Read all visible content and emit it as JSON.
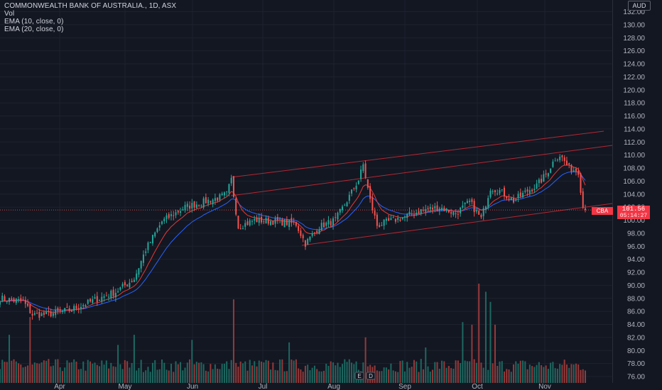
{
  "legend": {
    "title": "COMMONWEALTH BANK OF AUSTRALIA., 1D, ASX",
    "vol": "Vol",
    "ema10": "EMA (10, close, 0)",
    "ema20": "EMA (20, close, 0)"
  },
  "currency": "AUD",
  "last_price": {
    "symbol": "CBA",
    "price": "101.56",
    "countdown": "05:14:27"
  },
  "colors": {
    "background": "#131722",
    "up": "#26a69a",
    "down": "#ef5350",
    "ema10": "#e53935",
    "ema20": "#2962ff",
    "channel": "#b22833",
    "grid": "#1e222d",
    "axis_text": "#b2b5be"
  },
  "event_markers": [
    "E",
    "D"
  ],
  "chart_data": {
    "type": "candlestick",
    "title": "COMMONWEALTH BANK OF AUSTRALIA., 1D, ASX",
    "ylim": [
      76,
      132
    ],
    "y_ticks": [
      "132.00",
      "130.00",
      "128.00",
      "126.00",
      "124.00",
      "122.00",
      "120.00",
      "118.00",
      "116.00",
      "114.00",
      "112.00",
      "110.00",
      "108.00",
      "106.00",
      "104.00",
      "102.00",
      "100.00",
      "98.00",
      "96.00",
      "94.00",
      "92.00",
      "90.00",
      "88.00",
      "86.00",
      "84.00",
      "82.00",
      "80.00",
      "78.00",
      "76.00"
    ],
    "x_ticks": [
      "Apr",
      "May",
      "Jun",
      "Jul",
      "Aug",
      "Sep",
      "Oct",
      "Nov"
    ],
    "grid": true,
    "series": [
      {
        "name": "EMA (10, close, 0)",
        "kind": "ema"
      },
      {
        "name": "EMA (20, close, 0)",
        "kind": "ema"
      },
      {
        "name": "Vol",
        "kind": "volume"
      }
    ],
    "price_anchors": [
      [
        0,
        88.0
      ],
      [
        10,
        87.5
      ],
      [
        14,
        85.5
      ],
      [
        20,
        85.5
      ],
      [
        30,
        86.2
      ],
      [
        40,
        87.6
      ],
      [
        50,
        89.0
      ],
      [
        58,
        91.0
      ],
      [
        63,
        95.5
      ],
      [
        70,
        99.8
      ],
      [
        80,
        102.0
      ],
      [
        88,
        102.8
      ],
      [
        95,
        103.5
      ],
      [
        98,
        104.0
      ],
      [
        100,
        106.2
      ],
      [
        103,
        99.0
      ],
      [
        110,
        100.0
      ],
      [
        120,
        99.8
      ],
      [
        128,
        99.4
      ],
      [
        132,
        96.4
      ],
      [
        138,
        99.0
      ],
      [
        145,
        100.0
      ],
      [
        150,
        103.0
      ],
      [
        155,
        106.2
      ],
      [
        157,
        108.5
      ],
      [
        160,
        103.0
      ],
      [
        163,
        99.2
      ],
      [
        170,
        100.0
      ],
      [
        175,
        100.5
      ],
      [
        182,
        101.5
      ],
      [
        190,
        102.0
      ],
      [
        197,
        101.0
      ],
      [
        203,
        102.8
      ],
      [
        208,
        100.2
      ],
      [
        212,
        105.0
      ],
      [
        216,
        104.5
      ],
      [
        222,
        103.0
      ],
      [
        228,
        104.5
      ],
      [
        232,
        105.3
      ],
      [
        236,
        107.0
      ],
      [
        240,
        109.5
      ],
      [
        242,
        110.0
      ],
      [
        246,
        108.0
      ],
      [
        250,
        107.5
      ],
      [
        252,
        102.0
      ],
      [
        253,
        101.5
      ]
    ],
    "volume_note": "volume bars in the lower pane, relative scale",
    "last": {
      "price": 101.56,
      "label": "CBA"
    }
  }
}
